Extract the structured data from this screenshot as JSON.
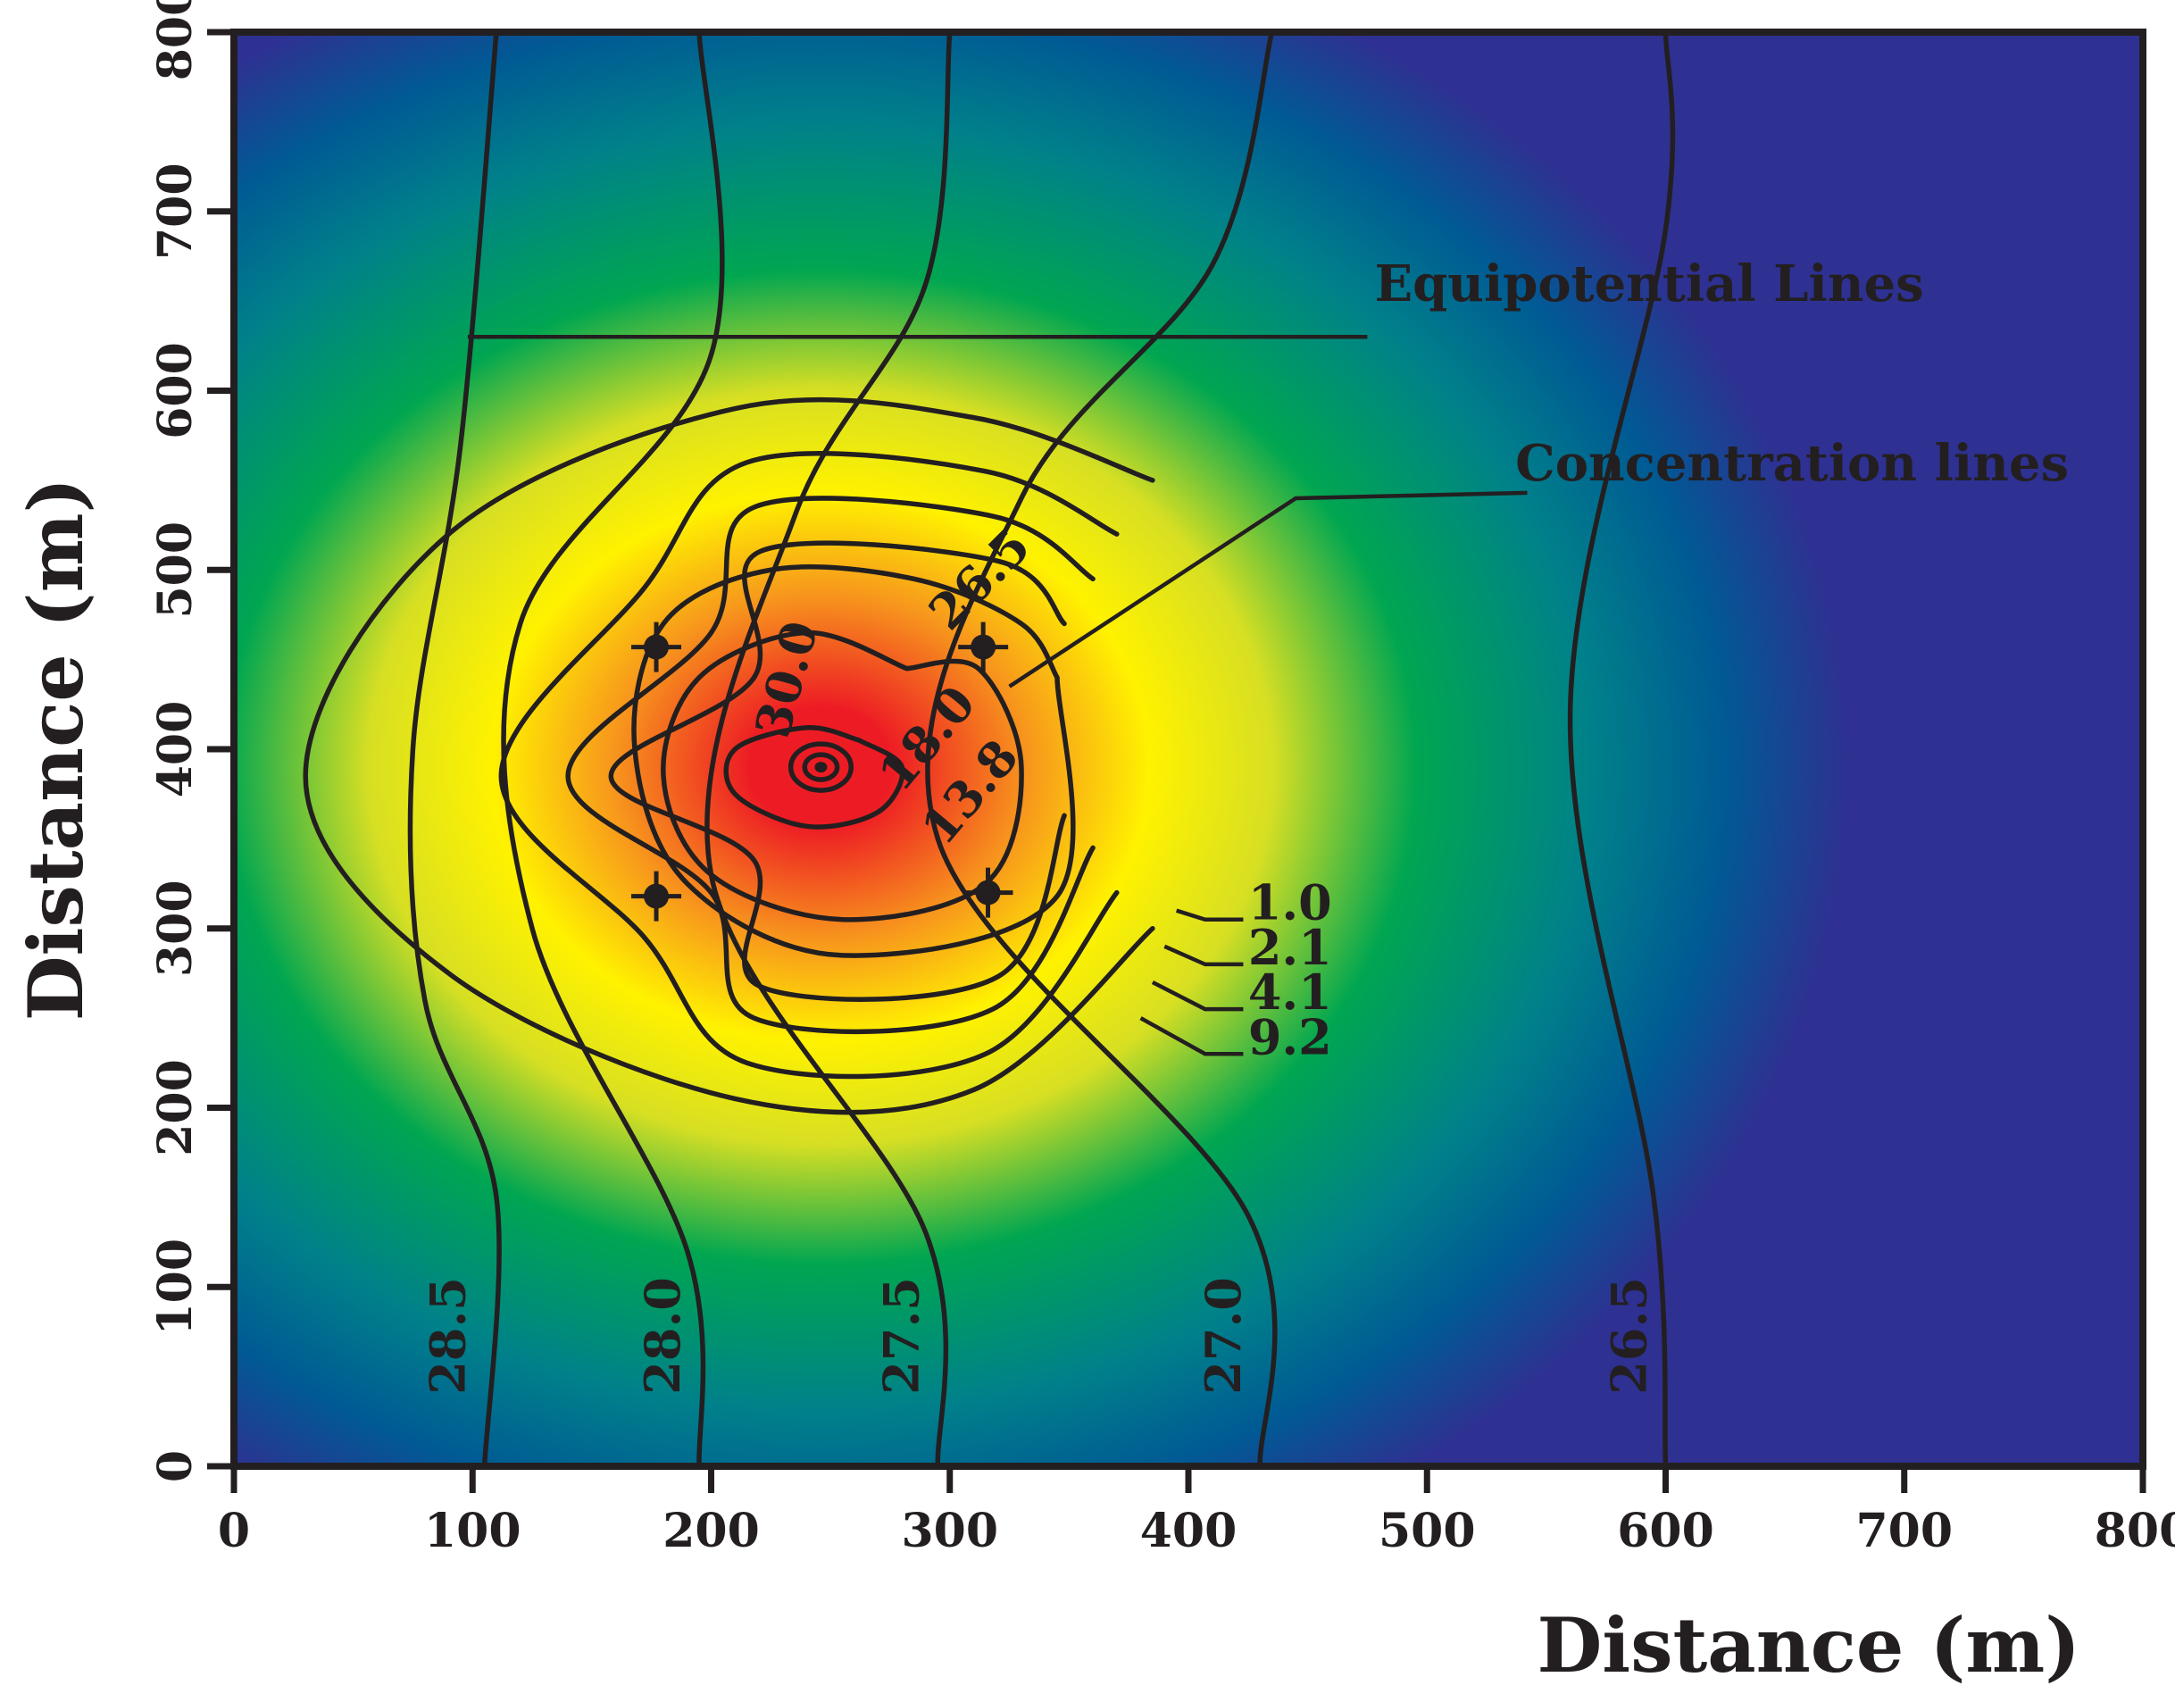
{
  "chart_data": {
    "type": "heatmap",
    "title": "",
    "xlabel": "Distance (m)",
    "ylabel": "Distance (m)",
    "xlim": [
      0,
      800
    ],
    "ylim": [
      0,
      800
    ],
    "x_ticks": [
      "0",
      "100",
      "200",
      "300",
      "400",
      "500",
      "600",
      "700",
      "800"
    ],
    "y_ticks": [
      "0",
      "100",
      "200",
      "300",
      "400",
      "500",
      "600",
      "700",
      "800"
    ],
    "grid": false,
    "colormap": [
      "#2e3192",
      "#005a94",
      "#00a651",
      "#fff200",
      "#ed1c24"
    ],
    "annotations": {
      "equipotential": "Equipotential Lines",
      "concentration": "Concentration lines"
    },
    "equipotential_lines": [
      {
        "label": "28.5",
        "points": [
          [
            105,
            0
          ],
          [
            110,
            150
          ],
          [
            80,
            260
          ],
          [
            75,
            400
          ],
          [
            95,
            570
          ],
          [
            110,
            800
          ]
        ]
      },
      {
        "label": "28.0",
        "points": [
          [
            195,
            0
          ],
          [
            190,
            120
          ],
          [
            125,
            300
          ],
          [
            120,
            470
          ],
          [
            200,
            620
          ],
          [
            195,
            800
          ]
        ]
      },
      {
        "label": "27.5",
        "points": [
          [
            295,
            0
          ],
          [
            290,
            130
          ],
          [
            200,
            330
          ],
          [
            235,
            530
          ],
          [
            290,
            660
          ],
          [
            300,
            800
          ]
        ]
      },
      {
        "label": "27.0",
        "points": [
          [
            430,
            0
          ],
          [
            425,
            140
          ],
          [
            295,
            350
          ],
          [
            330,
            540
          ],
          [
            410,
            670
          ],
          [
            435,
            800
          ]
        ]
      },
      {
        "label": "26.5",
        "points": [
          [
            600,
            0
          ],
          [
            595,
            150
          ],
          [
            560,
            420
          ],
          [
            600,
            690
          ],
          [
            600,
            800
          ]
        ]
      }
    ],
    "concentration_labels": [
      {
        "value": "30.0",
        "x": 232,
        "y": 405
      },
      {
        "value": "26.5",
        "x": 300,
        "y": 465
      },
      {
        "value": "18.0",
        "x": 280,
        "y": 375
      },
      {
        "value": "13.8",
        "x": 298,
        "y": 345
      },
      {
        "value": "1.0",
        "x": 425,
        "y": 305
      },
      {
        "value": "2.1",
        "x": 425,
        "y": 280
      },
      {
        "value": "4.1",
        "x": 425,
        "y": 255
      },
      {
        "value": "9.2",
        "x": 425,
        "y": 230
      }
    ],
    "plume_center": {
      "x": 246,
      "y": 390,
      "peak": 30.0
    },
    "wells": [
      {
        "x": 177,
        "y": 457
      },
      {
        "x": 314,
        "y": 457
      },
      {
        "x": 177,
        "y": 318
      },
      {
        "x": 316,
        "y": 320
      }
    ]
  }
}
